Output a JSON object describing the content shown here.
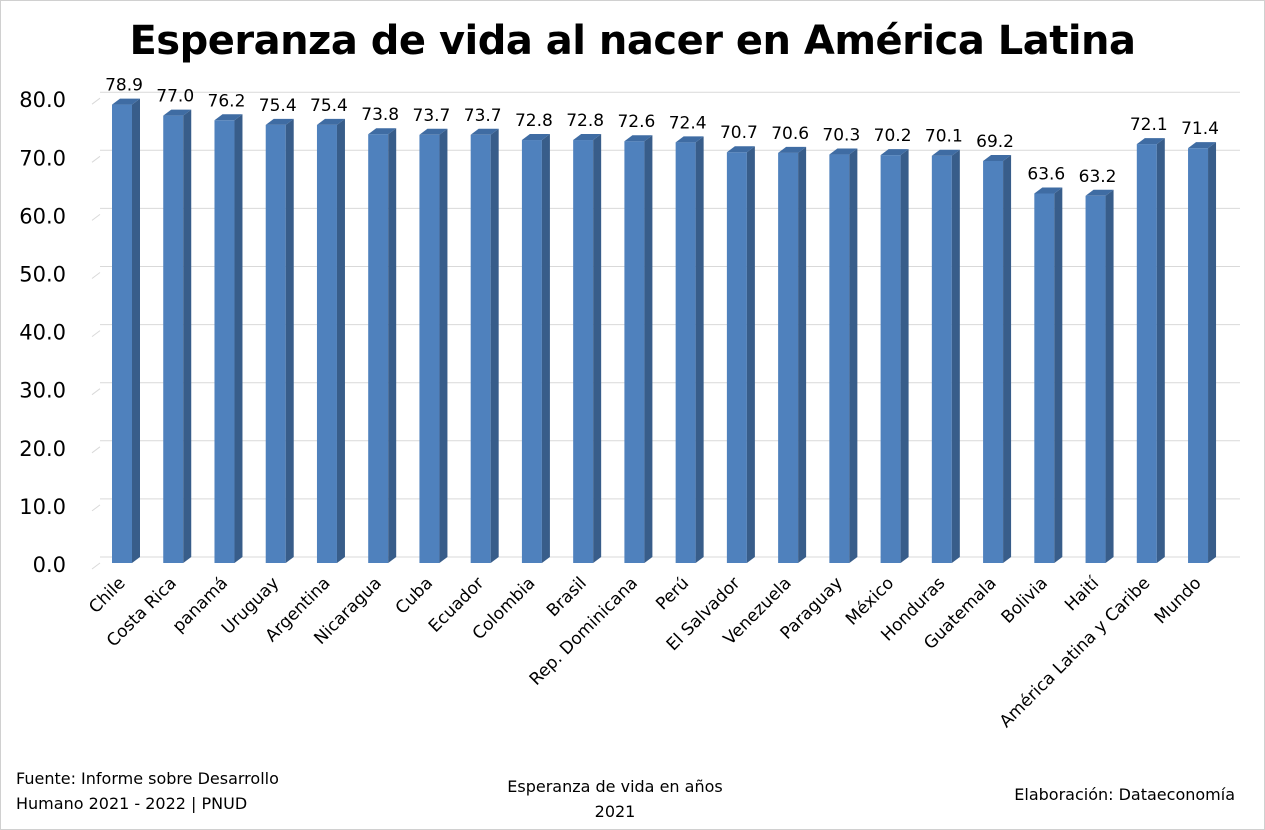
{
  "chart_data": {
    "type": "bar",
    "title": "Esperanza de vida al nacer en América Latina",
    "xlabel": "Esperanza de vida en años",
    "xlabel_sub": "2021",
    "ylabel": "",
    "ylim": [
      0,
      80
    ],
    "yticks": [
      "0.0",
      "10.0",
      "20.0",
      "30.0",
      "40.0",
      "50.0",
      "60.0",
      "70.0",
      "80.0"
    ],
    "grid": true,
    "style": "3d-column",
    "bar_color": "#4f81bd",
    "categories": [
      "Chile",
      "Costa Rica",
      "panamá",
      "Uruguay",
      "Argentina",
      "Nicaragua",
      "Cuba",
      "Ecuador",
      "Colombia",
      "Brasil",
      "Rep. Dominicana",
      "Perú",
      "El Salvador",
      "Venezuela",
      "Paraguay",
      "México",
      "Honduras",
      "Guatemala",
      "Bolivia",
      "Haití",
      "América Latina y Caribe",
      "Mundo"
    ],
    "values": [
      78.9,
      77.0,
      76.2,
      75.4,
      75.4,
      73.8,
      73.7,
      73.7,
      72.8,
      72.8,
      72.6,
      72.4,
      70.7,
      70.6,
      70.3,
      70.2,
      70.1,
      69.2,
      63.6,
      63.2,
      72.1,
      71.4
    ],
    "value_labels": [
      "78.9",
      "77.0",
      "76.2",
      "75.4",
      "75.4",
      "73.8",
      "73.7",
      "73.7",
      "72.8",
      "72.8",
      "72.6",
      "72.4",
      "70.7",
      "70.6",
      "70.3",
      "70.2",
      "70.1",
      "69.2",
      "63.6",
      "63.2",
      "72.1",
      "71.4"
    ]
  },
  "footer": {
    "source_line1": "Fuente: Informe sobre Desarrollo",
    "source_line2": "Humano 2021 - 2022 | PNUD",
    "credit": "Elaboración: Dataeconomía"
  }
}
